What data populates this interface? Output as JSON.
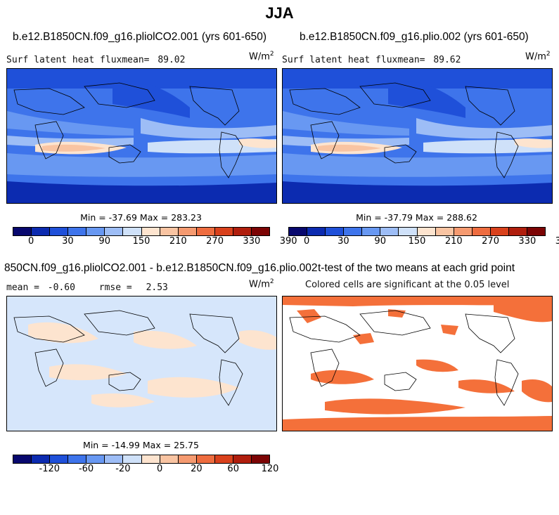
{
  "figure_title": "JJA",
  "panels": {
    "top_left": {
      "title": "b.e12.B1850CN.f09_g16.pliolCO2.001 (yrs 601-650)",
      "variable_label": "Surf latent heat fluxmean=",
      "mean_value": "89.02",
      "units_base": "W/m",
      "units_exp": "2",
      "minmax": "Min = -37.69 Max = 283.23"
    },
    "top_right": {
      "title": "b.e12.B1850CN.f09_g16.plio.002 (yrs 601-650)",
      "variable_label": "Surf latent heat fluxmean=",
      "mean_value": "89.62",
      "units_base": "W/m",
      "units_exp": "2",
      "minmax": "Min = -37.79 Max = 288.62"
    },
    "bottom_left": {
      "title": "850CN.f09_g16.pliolCO2.001 - b.e12.B1850CN.f09_g16.plio.002",
      "mean_label": "mean =",
      "mean_value": "-0.60",
      "rmse_label": "rmse =",
      "rmse_value": "2.53",
      "units_base": "W/m",
      "units_exp": "2",
      "minmax": "Min = -14.99 Max = 25.75"
    },
    "bottom_right": {
      "title": "t-test of the two means at each grid point",
      "subtitle": "Colored cells are significant at the 0.05 level"
    }
  },
  "colorbars": {
    "absolute": {
      "colors": [
        "#08086e",
        "#0c2bb0",
        "#1f50d9",
        "#3e74eb",
        "#6898f2",
        "#9dbdf6",
        "#cfe1f9",
        "#fde4cf",
        "#f9c4a2",
        "#f59a70",
        "#ee6c3f",
        "#d9411c",
        "#b01e0d",
        "#7c0404"
      ],
      "ticks": [
        "0",
        "30",
        "90",
        "150",
        "210",
        "270",
        "330",
        "390"
      ]
    },
    "difference": {
      "colors": [
        "#08086e",
        "#0c2bb0",
        "#1f50d9",
        "#3e74eb",
        "#6898f2",
        "#9dbdf6",
        "#cfe1f9",
        "#fde4cf",
        "#f9c4a2",
        "#f59a70",
        "#ee6c3f",
        "#d9411c",
        "#b01e0d",
        "#7c0404"
      ],
      "ticks": [
        "-120",
        "-60",
        "-20",
        "0",
        "20",
        "60",
        "120"
      ]
    }
  },
  "map_colors": {
    "ocean_deep": "#1f50d9",
    "ocean_mid": "#3e74eb",
    "ocean_light": "#6898f2",
    "ocean_pale": "#9dbdf6",
    "trop_warm": "#fde4cf",
    "trop_warmer": "#f9c4a2",
    "polar": "#0c2bb0",
    "diff_neg": "#d6e6fb",
    "diff_pos": "#fde4cf",
    "signif": "#f4703a"
  }
}
